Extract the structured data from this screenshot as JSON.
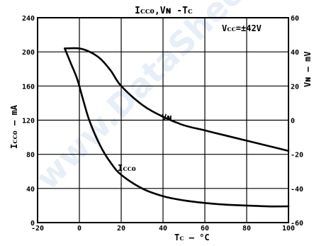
{
  "chart_data": {
    "type": "line",
    "title": "Iᴄᴄᴏ,Vɴ -Tᴄ",
    "annotation": "Vᴄᴄ=±42V",
    "xlabel": "Tᴄ — °C",
    "ylabel_left": "Iᴄᴄᴏ — mA",
    "ylabel_right": "Vɴ — mV",
    "xlim": [
      -20,
      100
    ],
    "ylim_left": [
      0,
      240
    ],
    "ylim_right": [
      -60,
      60
    ],
    "x_ticks": [
      "-20",
      "0",
      "20",
      "40",
      "60",
      "80",
      "100"
    ],
    "y_left_ticks": [
      "0",
      "40",
      "80",
      "120",
      "160",
      "200",
      "240"
    ],
    "y_right_ticks": [
      "-60",
      "-40",
      "-20",
      "0",
      "20",
      "40",
      "60"
    ],
    "grid": true,
    "watermark": "www.DataSheet",
    "series": [
      {
        "name": "Iᴄᴄᴏ",
        "axis": "left",
        "x": [
          -7,
          -4,
          -1,
          2,
          5,
          10,
          15,
          20,
          30,
          40,
          50,
          60,
          70,
          80,
          90,
          100
        ],
        "y": [
          204,
          186,
          168,
          142,
          118,
          90,
          70,
          56,
          40,
          31,
          26,
          23,
          21,
          20,
          19,
          19
        ]
      },
      {
        "name": "Vɴ",
        "axis": "right",
        "x": [
          -7,
          0,
          5,
          10,
          15,
          20,
          30,
          40,
          50,
          60,
          70,
          80,
          90,
          100
        ],
        "y": [
          42,
          42,
          40,
          36,
          29,
          20,
          9,
          2,
          -3,
          -6,
          -9,
          -12,
          -15,
          -18
        ]
      }
    ],
    "series_labels": [
      "Vɴ",
      "Iᴄᴄᴏ"
    ]
  }
}
